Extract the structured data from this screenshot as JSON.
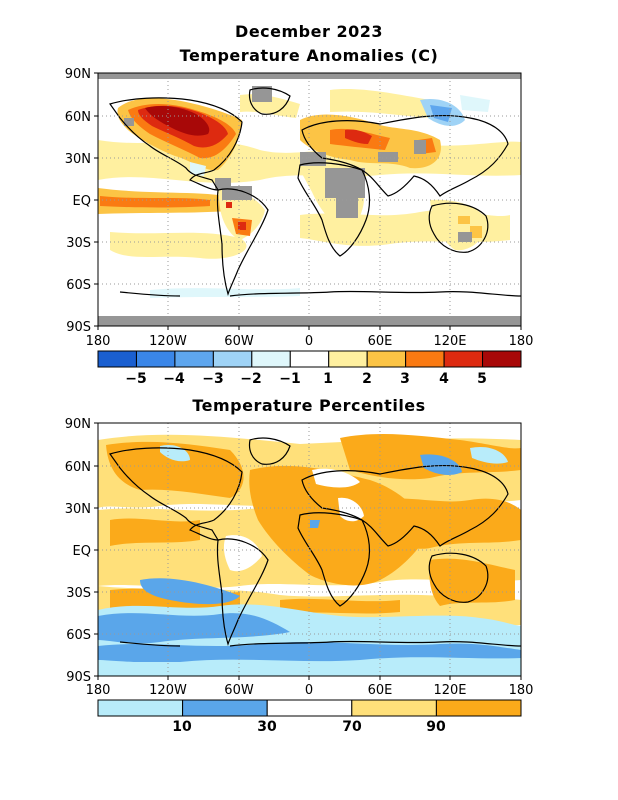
{
  "figure": {
    "title_line1": "December 2023",
    "map1_title": "Temperature Anomalies (C)",
    "map2_title": "Temperature Percentiles"
  },
  "axes": {
    "lat_labels": [
      "90N",
      "60N",
      "30N",
      "EQ",
      "30S",
      "60S",
      "90S"
    ],
    "lon_labels": [
      "180",
      "120W",
      "60W",
      "0",
      "60E",
      "120E",
      "180"
    ]
  },
  "anomaly_legend": {
    "colors": [
      "#1a5fd0",
      "#3a86e8",
      "#5ea6ee",
      "#9fd3f6",
      "#dff7fb",
      "#ffffff",
      "#fff0a0",
      "#fcc445",
      "#fa7a12",
      "#dd2a10",
      "#a80808"
    ],
    "labels": [
      "-5",
      "-4",
      "-3",
      "-2",
      "-1",
      "1",
      "2",
      "3",
      "4",
      "5"
    ]
  },
  "percentile_legend": {
    "colors": [
      "#b8ecfa",
      "#5aa6ea",
      "#ffffff",
      "#ffe07a",
      "#fbaa1a"
    ],
    "labels": [
      "10",
      "30",
      "70",
      "90"
    ]
  },
  "colors": {
    "missing": "#969696",
    "land_outline": "#000000",
    "grid": "#9a9a9a"
  }
}
